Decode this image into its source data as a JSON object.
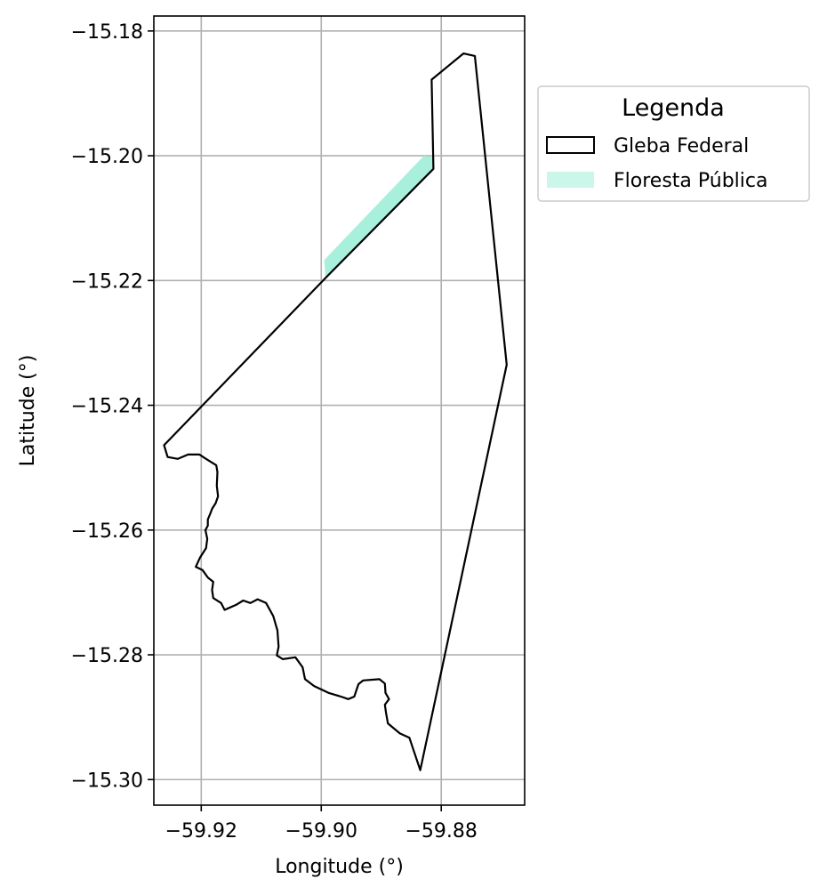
{
  "chart_data": {
    "type": "map",
    "xlabel": "Longitude (°)",
    "ylabel": "Latitude (°)",
    "xlim": [
      -59.9279,
      -59.8661
    ],
    "ylim": [
      -15.3041,
      -15.1776
    ],
    "xticks": [
      -59.92,
      -59.9,
      -59.88
    ],
    "yticks": [
      -15.18,
      -15.2,
      -15.22,
      -15.24,
      -15.26,
      -15.28,
      -15.3
    ],
    "xtick_labels": [
      "−59.92",
      "−59.90",
      "−59.88"
    ],
    "ytick_labels": [
      "−15.18",
      "−15.20",
      "−15.22",
      "−15.24",
      "−15.26",
      "−15.28",
      "−15.30"
    ],
    "grid": true,
    "legend": {
      "title": "Legenda",
      "position": "outside-upper-right",
      "entries": [
        {
          "label": "Gleba Federal",
          "style": "outline",
          "color": "#000000"
        },
        {
          "label": "Floresta Pública",
          "style": "fill",
          "color": "#a8f0dc"
        }
      ]
    },
    "layers": [
      {
        "name": "Gleba Federal",
        "style": "outline",
        "color": "#000000",
        "coords": [
          [
            -59.8813,
            -15.2021
          ],
          [
            -59.8993,
            -15.2196
          ],
          [
            -59.9262,
            -15.2464
          ],
          [
            -59.9256,
            -15.2483
          ],
          [
            -59.9239,
            -15.2486
          ],
          [
            -59.9222,
            -15.2479
          ],
          [
            -59.9203,
            -15.2479
          ],
          [
            -59.9192,
            -15.2486
          ],
          [
            -59.9175,
            -15.2496
          ],
          [
            -59.9173,
            -15.2507
          ],
          [
            -59.9174,
            -15.2529
          ],
          [
            -59.9172,
            -15.2546
          ],
          [
            -59.9176,
            -15.2557
          ],
          [
            -59.9182,
            -15.2566
          ],
          [
            -59.9185,
            -15.2574
          ],
          [
            -59.9189,
            -15.2583
          ],
          [
            -59.9189,
            -15.2593
          ],
          [
            -59.9193,
            -15.26
          ],
          [
            -59.919,
            -15.2614
          ],
          [
            -59.9192,
            -15.2629
          ],
          [
            -59.9202,
            -15.2644
          ],
          [
            -59.9209,
            -15.2659
          ],
          [
            -59.9198,
            -15.2664
          ],
          [
            -59.9189,
            -15.2676
          ],
          [
            -59.918,
            -15.2683
          ],
          [
            -59.9182,
            -15.2696
          ],
          [
            -59.918,
            -15.2709
          ],
          [
            -59.9167,
            -15.2717
          ],
          [
            -59.9161,
            -15.2728
          ],
          [
            -59.9142,
            -15.272
          ],
          [
            -59.913,
            -15.2713
          ],
          [
            -59.9118,
            -15.2717
          ],
          [
            -59.9106,
            -15.2711
          ],
          [
            -59.9092,
            -15.2717
          ],
          [
            -59.908,
            -15.2738
          ],
          [
            -59.9073,
            -15.2761
          ],
          [
            -59.9071,
            -15.2787
          ],
          [
            -59.9074,
            -15.2801
          ],
          [
            -59.9064,
            -15.2807
          ],
          [
            -59.9043,
            -15.2804
          ],
          [
            -59.9031,
            -15.282
          ],
          [
            -59.9027,
            -15.2839
          ],
          [
            -59.9012,
            -15.285
          ],
          [
            -59.8988,
            -15.2861
          ],
          [
            -59.8967,
            -15.2867
          ],
          [
            -59.8955,
            -15.2871
          ],
          [
            -59.8945,
            -15.2867
          ],
          [
            -59.8938,
            -15.2847
          ],
          [
            -59.893,
            -15.2841
          ],
          [
            -59.8903,
            -15.2839
          ],
          [
            -59.8894,
            -15.2846
          ],
          [
            -59.8893,
            -15.2861
          ],
          [
            -59.8887,
            -15.2871
          ],
          [
            -59.8894,
            -15.288
          ],
          [
            -59.8892,
            -15.2893
          ],
          [
            -59.8889,
            -15.291
          ],
          [
            -59.8869,
            -15.2926
          ],
          [
            -59.8853,
            -15.2933
          ],
          [
            -59.8835,
            -15.2985
          ],
          [
            -59.8691,
            -15.2335
          ],
          [
            -59.8744,
            -15.184
          ],
          [
            -59.8763,
            -15.1836
          ],
          [
            -59.8816,
            -15.1878
          ],
          [
            -59.8813,
            -15.2021
          ]
        ]
      },
      {
        "name": "Floresta Pública",
        "style": "fill",
        "color": "#a8f0dc",
        "coords": [
          [
            -59.8993,
            -15.2196
          ],
          [
            -59.8813,
            -15.2021
          ],
          [
            -59.8813,
            -15.2002
          ],
          [
            -59.8829,
            -15.2
          ],
          [
            -59.8995,
            -15.2167
          ],
          [
            -59.8993,
            -15.2196
          ]
        ]
      }
    ]
  }
}
